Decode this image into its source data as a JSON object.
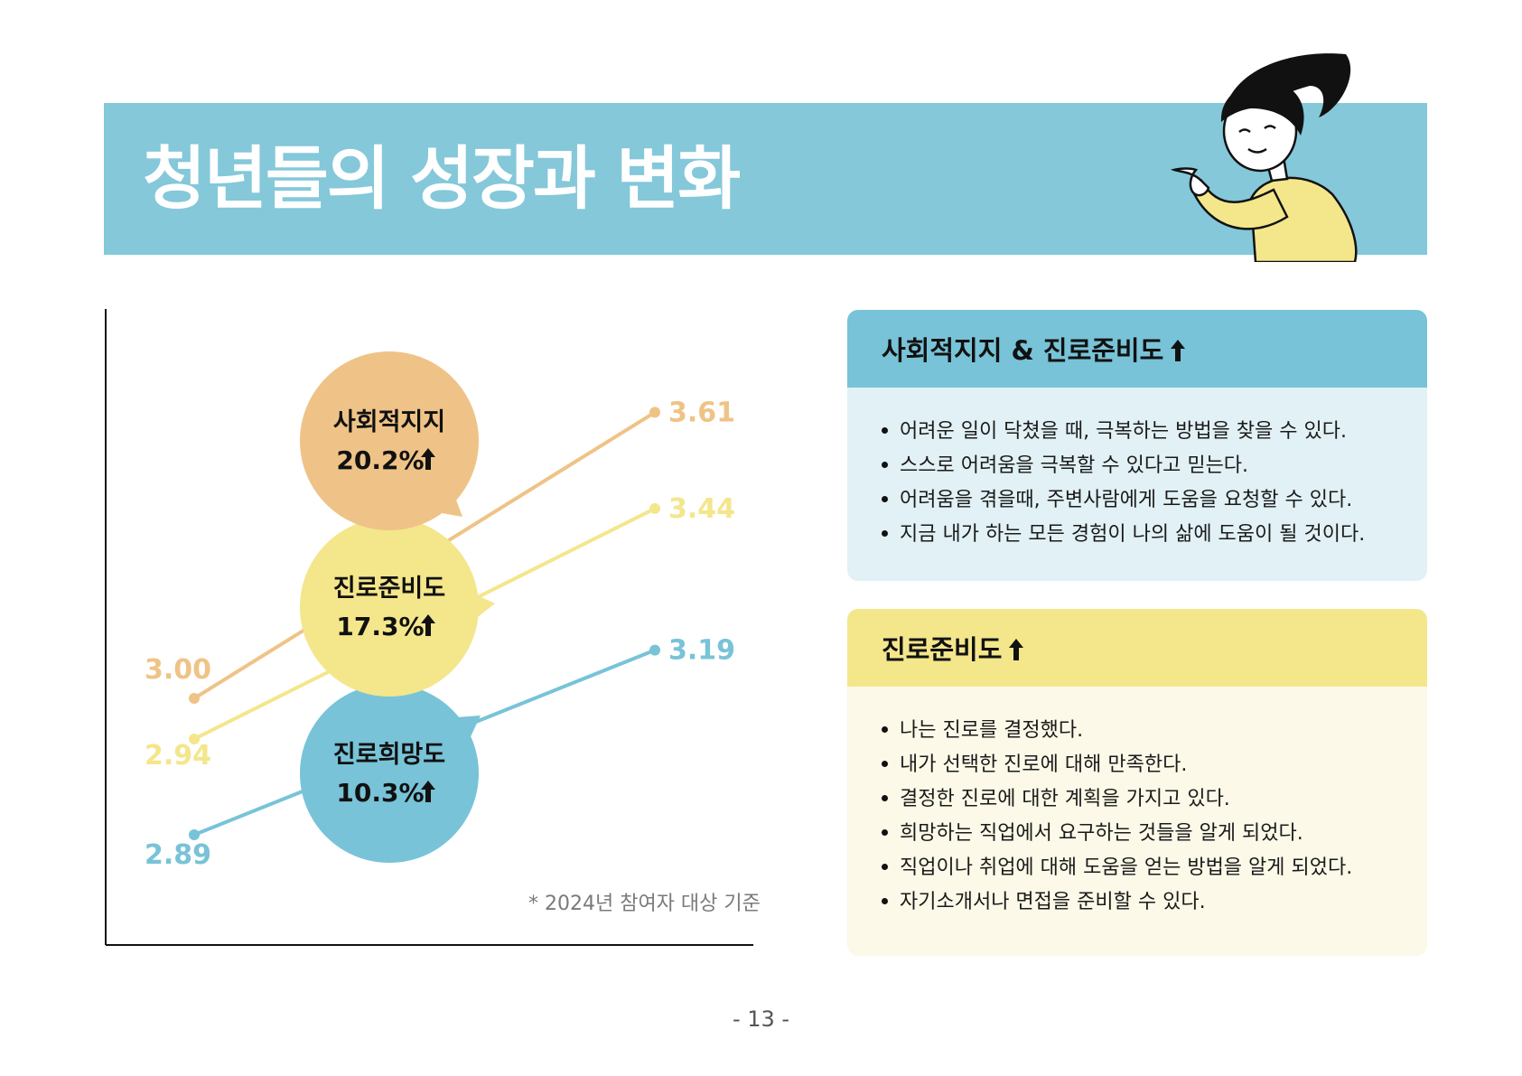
{
  "banner": {
    "title": "청년들의 성장과 변화"
  },
  "chart_data": {
    "type": "line",
    "x": [
      "",
      ""
    ],
    "series": [
      {
        "name": "사회적지지",
        "values": [
          3.0,
          3.61
        ],
        "change": "20.2%",
        "color": "#efc387"
      },
      {
        "name": "진로준비도",
        "values": [
          2.94,
          3.44
        ],
        "change": "17.3%",
        "color": "#f4e68b"
      },
      {
        "name": "진로희망도",
        "values": [
          2.89,
          3.19
        ],
        "change": "10.3%",
        "color": "#78c3d7"
      }
    ],
    "value_labels": {
      "start": [
        "3.00",
        "2.94",
        "2.89"
      ],
      "end": [
        "3.61",
        "3.44",
        "3.19"
      ]
    }
  },
  "footnote": "* 2024년 참여자 대상 기준",
  "card_social": {
    "title": "사회적지지 & 진로준비도",
    "items": [
      "어려운 일이 닥쳤을 때, 극복하는 방법을 찾을 수 있다.",
      "스스로 어려움을 극복할 수 있다고 믿는다.",
      "어려움을 겪을때, 주변사람에게 도움을 요청할 수 있다.",
      "지금 내가 하는 모든 경험이 나의 삶에 도움이 될 것이다."
    ]
  },
  "card_career": {
    "title": "진로준비도",
    "items": [
      "나는 진로를 결정했다.",
      "내가 선택한 진로에 대해 만족한다.",
      "결정한 진로에 대한 계획을 가지고 있다.",
      "희망하는 직업에서 요구하는 것들을 알게 되었다.",
      "직업이나 취업에 대해 도움을 얻는 방법을 알게 되었다.",
      "자기소개서나 면접을 준비할 수 있다."
    ]
  },
  "page_number": "- 13 -",
  "icons": [
    "arrow-up-icon",
    "pointing-girl-illustration"
  ]
}
